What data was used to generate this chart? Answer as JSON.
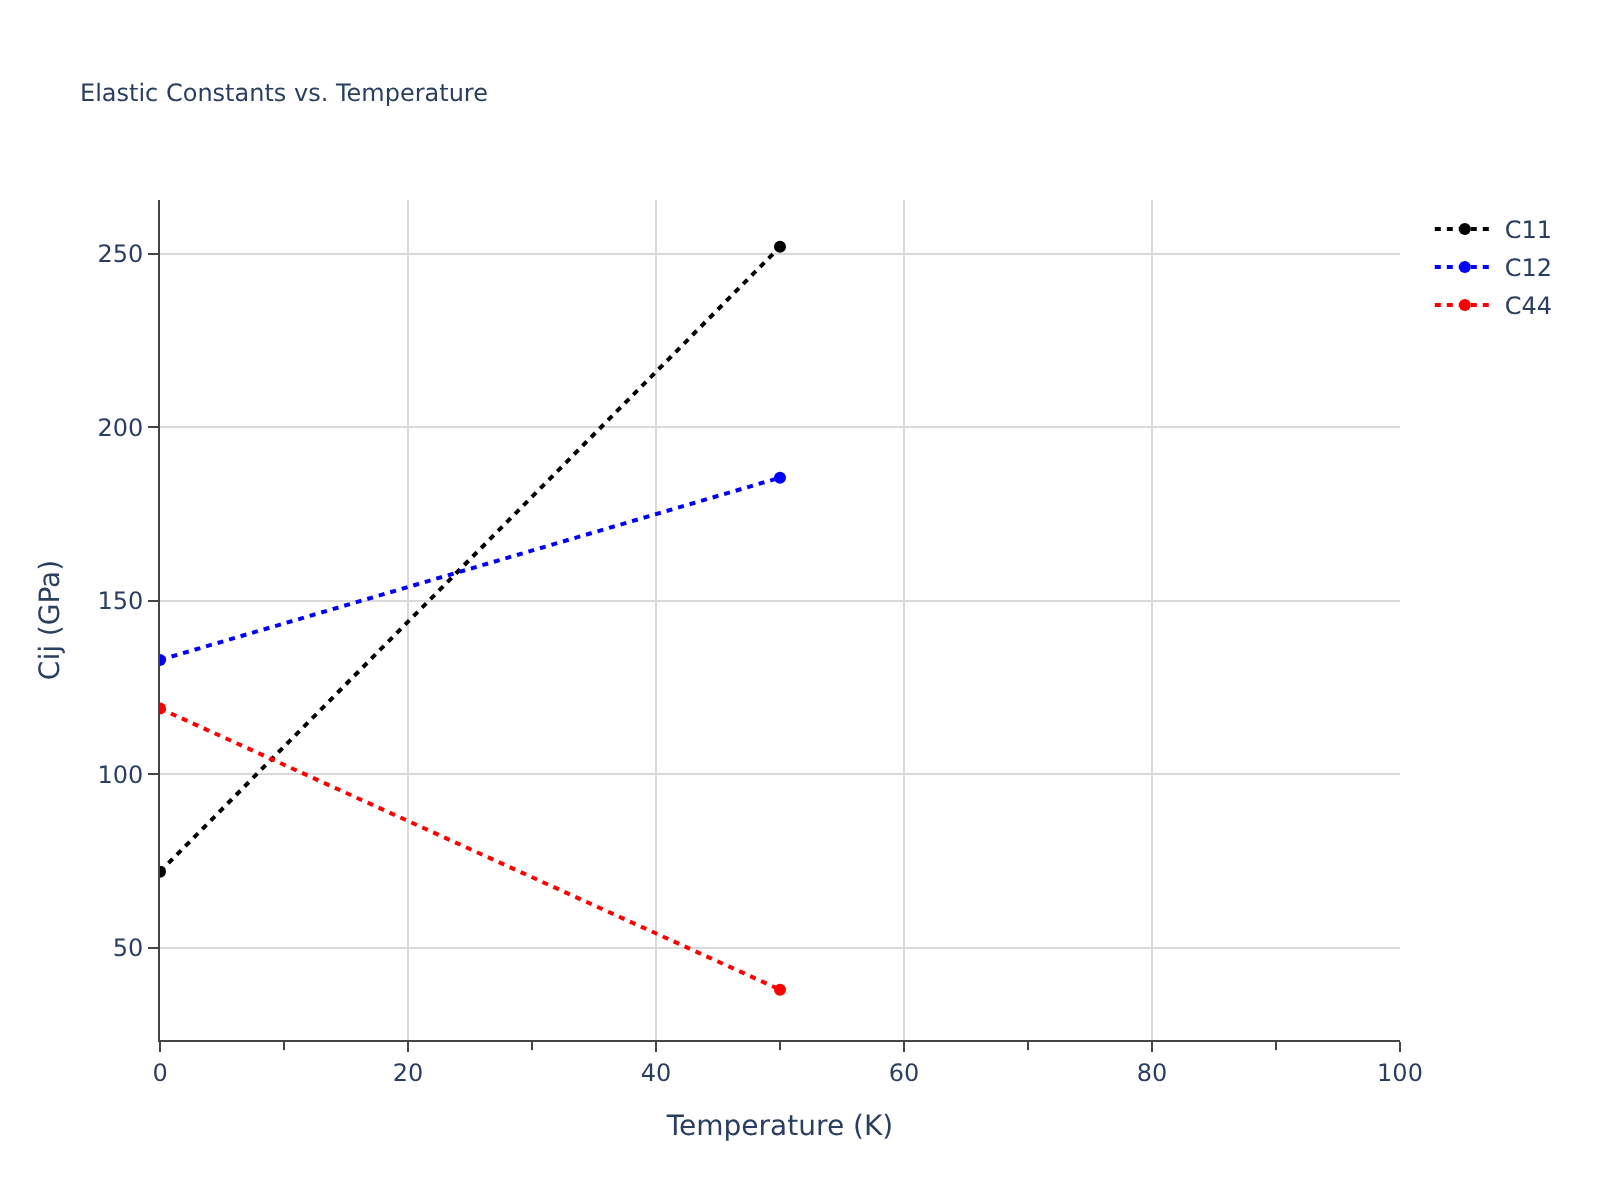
{
  "chart_data": {
    "type": "line",
    "title": "Elastic Constants vs. Temperature",
    "xlabel": "Temperature (K)",
    "ylabel": "Cij (GPa)",
    "x": [
      0,
      50
    ],
    "series": [
      {
        "name": "C11",
        "color": "#000000",
        "values": [
          72,
          252
        ]
      },
      {
        "name": "C12",
        "color": "#0000ff",
        "values": [
          133,
          185.5
        ]
      },
      {
        "name": "C44",
        "color": "#ff0000",
        "values": [
          119,
          38
        ]
      }
    ],
    "xlim": [
      0,
      100
    ],
    "xticks": [
      0,
      20,
      40,
      60,
      80,
      100
    ],
    "ylim": [
      23.5,
      265.5
    ],
    "yticks": [
      50,
      100,
      150,
      200,
      250
    ],
    "grid": true,
    "legend": "top right",
    "marker": "circle",
    "line_style": "dotted"
  }
}
